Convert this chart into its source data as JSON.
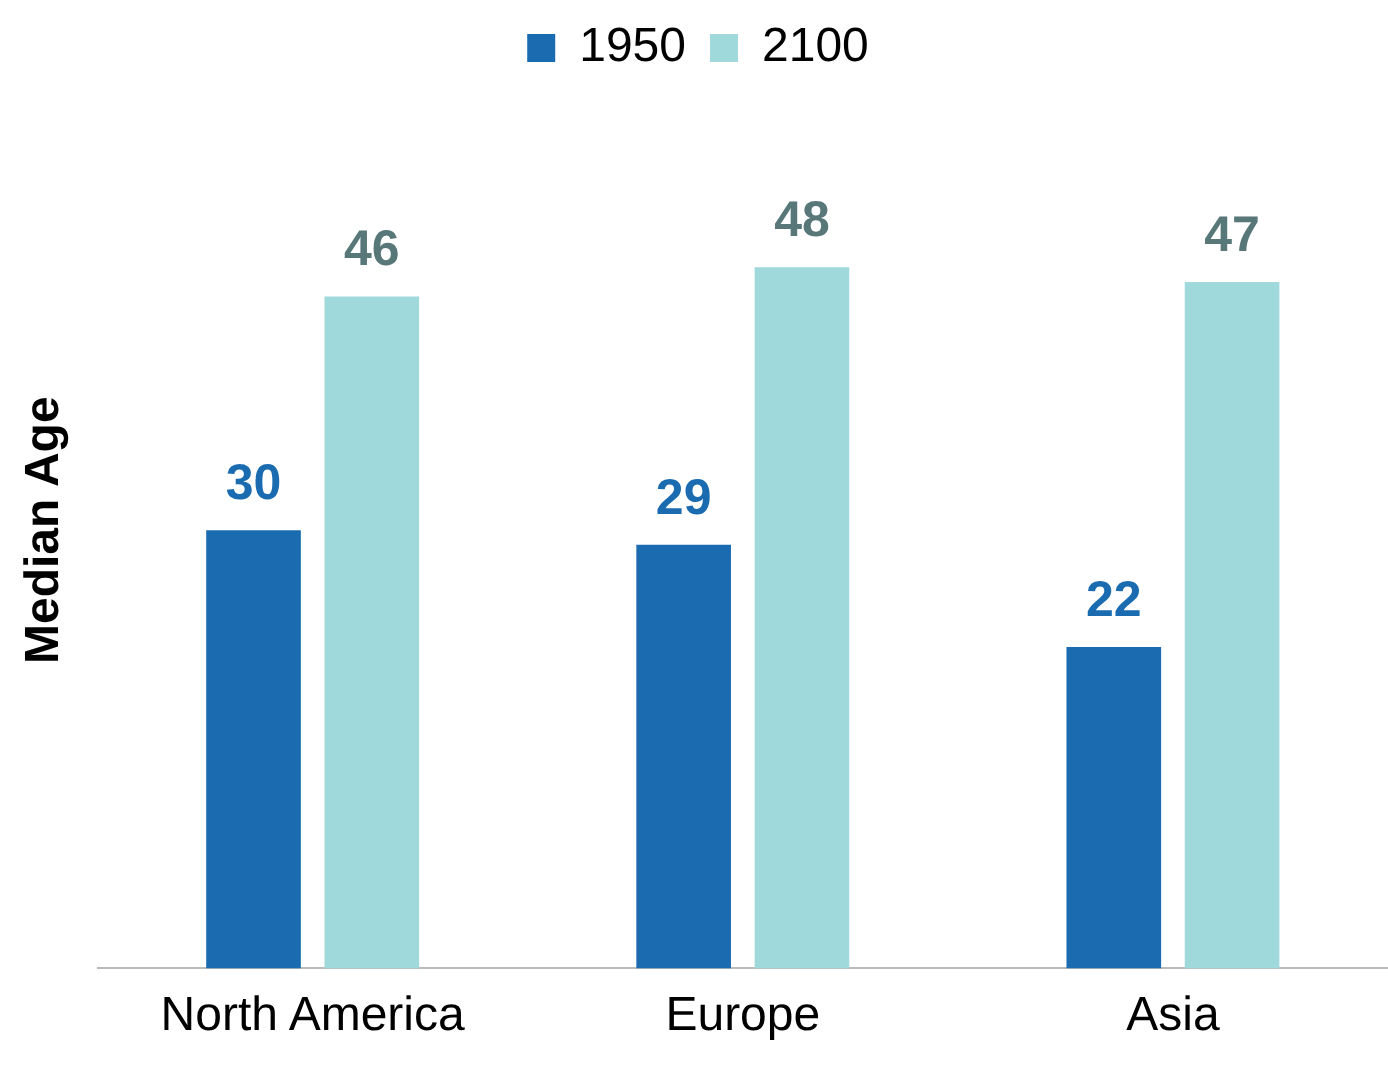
{
  "chart_data": {
    "type": "bar",
    "ylabel": "Median Age",
    "categories": [
      "North America",
      "Europe",
      "Asia"
    ],
    "series": [
      {
        "name": "1950",
        "color": "#1a6bb0",
        "values": [
          30,
          29,
          22
        ]
      },
      {
        "name": "2100",
        "color": "#a0d9dc",
        "values": [
          46,
          48,
          47
        ]
      }
    ],
    "data_labels": true,
    "legend": "top",
    "grid": false,
    "tick_labels": "x"
  }
}
